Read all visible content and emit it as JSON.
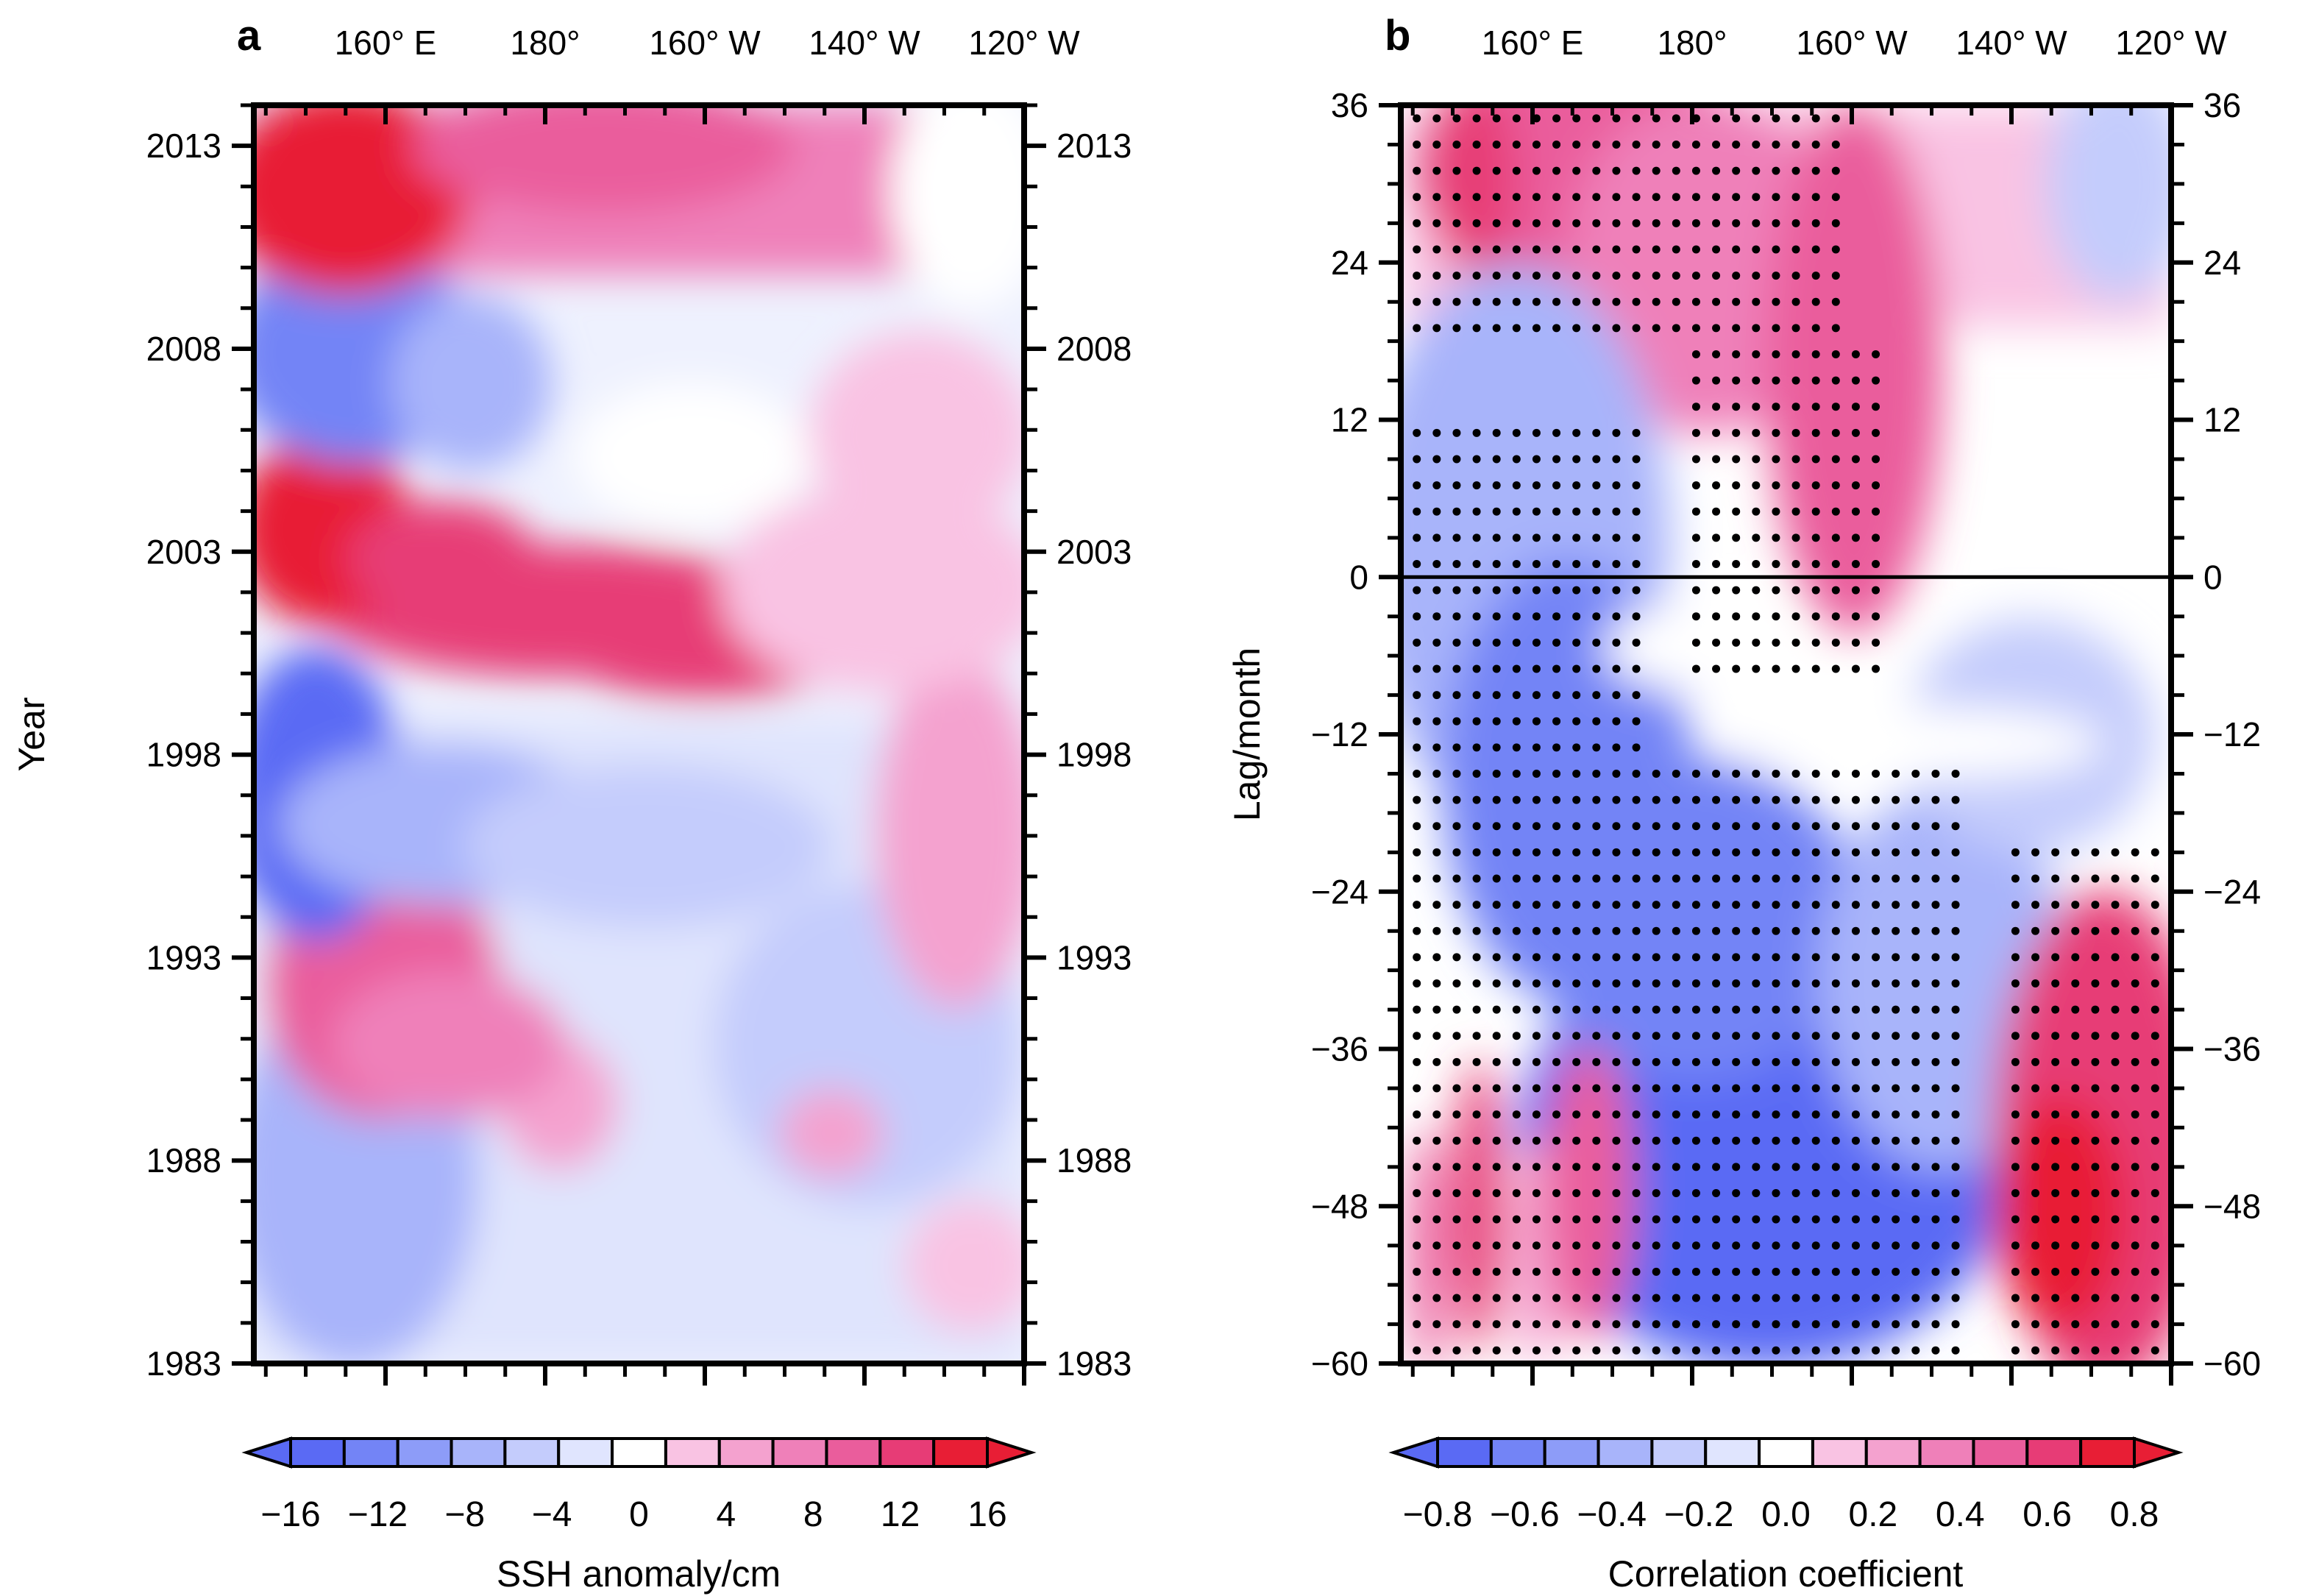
{
  "colors": {
    "blue": [
      "#5a6af4",
      "#7384f6",
      "#8d9cf8",
      "#a8b4fa",
      "#c4ccfc",
      "#e0e5fe"
    ],
    "white": "#ffffff",
    "red": [
      "#f9c3e3",
      "#f4a2cf",
      "#ef80b9",
      "#ea5d9c",
      "#e73c76",
      "#e81e35"
    ]
  },
  "chart_data": [
    {
      "type": "heatmap",
      "panel": "a",
      "ylabel": "Year",
      "x_ticks": [
        "160° E",
        "180°",
        "160° W",
        "140° W",
        "120° W"
      ],
      "x_tick_values": [
        160,
        180,
        200,
        220,
        240
      ],
      "xlim": [
        143.5,
        240
      ],
      "y_ticks": [
        "2013",
        "2008",
        "2003",
        "1998",
        "1993",
        "1988",
        "1983"
      ],
      "y_tick_values": [
        2013,
        2008,
        2003,
        1998,
        1993,
        1988,
        1983
      ],
      "ylim": [
        1983,
        2014
      ],
      "colorbar": {
        "title": "SSH anomaly/cm",
        "tick_labels": [
          "−16",
          "−12",
          "−8",
          "−4",
          "0",
          "4",
          "8",
          "12",
          "16"
        ],
        "levels": [
          -16,
          -12,
          -8,
          -4,
          0,
          4,
          8,
          12,
          16
        ]
      },
      "regions": [
        {
          "year_range": [
            2010,
            2014
          ],
          "lon_range": [
            144,
            175
          ],
          "value": 14
        },
        {
          "year_range": [
            2010,
            2014
          ],
          "lon_range": [
            175,
            205
          ],
          "value": 9
        },
        {
          "year_range": [
            2005,
            2010
          ],
          "lon_range": [
            144,
            170
          ],
          "value": -6
        },
        {
          "year_range": [
            2002,
            2005
          ],
          "lon_range": [
            144,
            165
          ],
          "value": 14
        },
        {
          "year_range": [
            2000,
            2003
          ],
          "lon_range": [
            175,
            200
          ],
          "value": 10
        },
        {
          "year_range": [
            1996,
            2000
          ],
          "lon_range": [
            144,
            160
          ],
          "value": -10
        },
        {
          "year_range": [
            1989,
            1994
          ],
          "lon_range": [
            150,
            170
          ],
          "value": 8
        },
        {
          "year_range": [
            1983,
            1999
          ],
          "lon_range": [
            170,
            240
          ],
          "value": -3
        }
      ]
    },
    {
      "type": "heatmap",
      "panel": "b",
      "ylabel": "Lag/month",
      "x_ticks": [
        "160° E",
        "180°",
        "160° W",
        "140° W",
        "120° W"
      ],
      "x_tick_values": [
        160,
        180,
        200,
        220,
        240
      ],
      "xlim": [
        143.5,
        240
      ],
      "y_ticks": [
        "36",
        "24",
        "12",
        "0",
        "−12",
        "−24",
        "−36",
        "−48",
        "−60"
      ],
      "y_tick_values": [
        36,
        24,
        12,
        0,
        -12,
        -24,
        -36,
        -48,
        -60
      ],
      "ylim": [
        -60,
        36
      ],
      "zero_line": 0,
      "colorbar": {
        "title": "Correlation coefficient",
        "tick_labels": [
          "−0.8",
          "−0.6",
          "−0.4",
          "−0.2",
          "0.0",
          "0.2",
          "0.4",
          "0.6",
          "0.8"
        ],
        "levels": [
          -0.8,
          -0.6,
          -0.4,
          -0.2,
          0.0,
          0.2,
          0.4,
          0.6,
          0.8
        ]
      },
      "regions": [
        {
          "lag_range": [
            18,
            36
          ],
          "lon_range": [
            144,
            200
          ],
          "value": 0.55,
          "significant": true
        },
        {
          "lag_range": [
            -8,
            18
          ],
          "lon_range": [
            180,
            205
          ],
          "value": 0.45,
          "significant": true
        },
        {
          "lag_range": [
            -60,
            12
          ],
          "lon_range": [
            144,
            175
          ],
          "value": -0.45,
          "significant": true
        },
        {
          "lag_range": [
            -60,
            -15
          ],
          "lon_range": [
            175,
            215
          ],
          "value": -0.65,
          "significant": true
        },
        {
          "lag_range": [
            -60,
            -20
          ],
          "lon_range": [
            220,
            240
          ],
          "value": 0.65,
          "significant": true
        },
        {
          "lag_range": [
            -60,
            -40
          ],
          "lon_range": [
            147,
            157
          ],
          "value": 0.4,
          "significant": true
        }
      ]
    }
  ]
}
